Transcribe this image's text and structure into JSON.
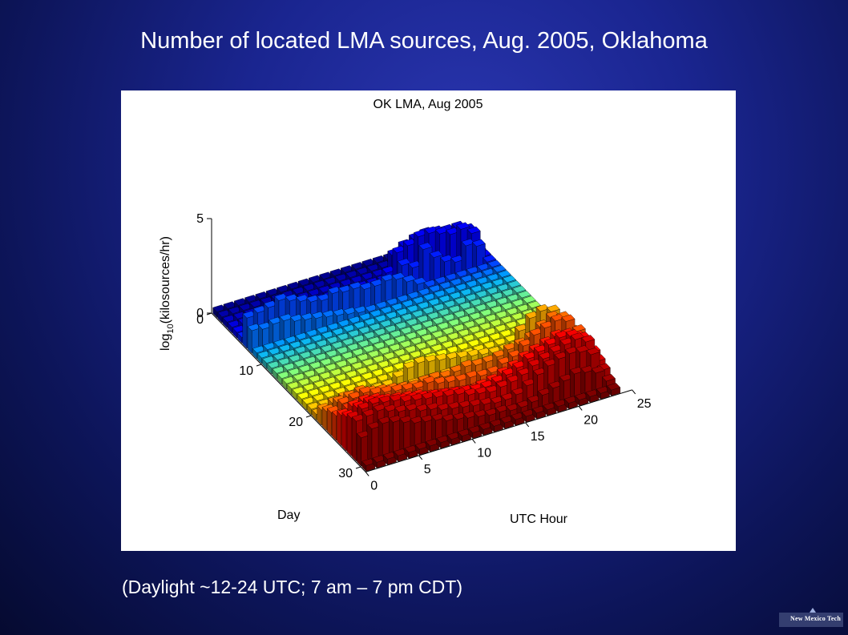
{
  "slide": {
    "title": "Number of located LMA sources, Aug. 2005, Oklahoma",
    "caption": "(Daylight ~12-24 UTC;  7 am – 7 pm CDT)",
    "logo_text": "New Mexico Tech"
  },
  "chart_data": {
    "type": "bar3d",
    "title": "OK LMA, Aug 2005",
    "xlabel": "UTC Hour",
    "ylabel": "Day",
    "zlabel": "log10(kilosources/hr)",
    "zlabel_main": "log",
    "zlabel_sub": "10",
    "zlabel_rest": "(kilosources/hr)",
    "x_ticks": [
      "0",
      "5",
      "10",
      "15",
      "20",
      "25"
    ],
    "y_ticks": [
      "0",
      "10",
      "20",
      "30"
    ],
    "z_ticks": [
      "0",
      "5"
    ],
    "x_range": [
      0,
      25
    ],
    "y_range": [
      0,
      31
    ],
    "z_range": [
      0,
      5
    ],
    "colormap": "jet, colored by day (day 1 blue to day 31 dark red)",
    "day_colors": [
      "#00008f",
      "#0000ff",
      "#00b0ff",
      "#7fff7f",
      "#ffff00",
      "#ff8000",
      "#ff0000",
      "#800000"
    ],
    "z_values_by_day": [
      [
        0.3,
        0.3,
        0.3,
        0.3,
        0.3,
        0.3,
        0.3,
        0.3,
        0.3,
        0.3,
        0.3,
        0.3,
        0.3,
        0.3,
        0.3,
        0.3,
        0.3,
        0.3,
        0.3,
        0.3,
        0.3,
        0.3,
        0.3,
        0.3
      ],
      [
        0.3,
        0.3,
        0.3,
        0.3,
        0.3,
        0.3,
        0.3,
        0.3,
        0.3,
        0.3,
        0.3,
        0.3,
        0.3,
        0.3,
        0.3,
        0.3,
        0.3,
        0.3,
        0.3,
        0.3,
        0.3,
        0.3,
        0.3,
        0.3
      ],
      [
        0.3,
        0.3,
        0.3,
        0.3,
        0.3,
        0.3,
        0.3,
        0.3,
        0.3,
        0.3,
        0.3,
        0.3,
        0.3,
        0.3,
        0.3,
        0.3,
        0.3,
        0.3,
        0.3,
        0.3,
        0.3,
        0.3,
        0.3,
        0.3
      ],
      [
        0.3,
        0.3,
        0.3,
        0.3,
        0.3,
        0.3,
        0.3,
        0.3,
        0.3,
        0.3,
        0.3,
        0.3,
        0.3,
        0.3,
        0.3,
        1.5,
        1.8,
        2.0,
        2.1,
        2.0,
        1.9,
        1.9,
        1.6,
        0.3
      ],
      [
        0.3,
        0.3,
        0.3,
        0.3,
        0.3,
        0.3,
        0.3,
        0.3,
        0.3,
        0.3,
        0.3,
        0.3,
        0.3,
        0.3,
        1.0,
        1.9,
        2.1,
        2.4,
        2.4,
        2.2,
        2.0,
        2.1,
        1.7,
        0.3
      ],
      [
        0.3,
        0.3,
        0.3,
        0.3,
        0.3,
        0.3,
        0.3,
        0.3,
        0.3,
        0.3,
        0.3,
        0.3,
        0.3,
        0.6,
        0.8,
        1.5,
        1.2,
        2.0,
        1.4,
        1.0,
        0.8,
        1.5,
        1.3,
        0.3
      ],
      [
        1.6,
        1.7,
        1.8,
        2.0,
        1.8,
        1.6,
        1.4,
        1.3,
        1.5,
        1.4,
        1.4,
        1.2,
        1.2,
        1.3,
        1.2,
        0.9,
        0.6,
        0.3,
        0.3,
        0.3,
        0.3,
        0.3,
        0.3,
        0.3
      ],
      [
        1.2,
        1.1,
        1.2,
        1.2,
        1.0,
        0.9,
        0.8,
        0.7,
        0.6,
        0.5,
        0.4,
        0.3,
        0.3,
        0.3,
        0.3,
        0.3,
        0.3,
        0.3,
        0.3,
        0.3,
        0.3,
        0.3,
        0.3,
        0.3
      ],
      [
        0.3,
        0.3,
        0.3,
        0.3,
        0.3,
        0.3,
        0.3,
        0.3,
        0.3,
        0.3,
        0.3,
        0.3,
        0.3,
        0.3,
        0.3,
        0.3,
        0.3,
        0.3,
        0.3,
        0.3,
        0.3,
        0.3,
        0.3,
        0.3
      ],
      [
        0.3,
        0.3,
        0.3,
        0.3,
        0.3,
        0.3,
        0.3,
        0.3,
        0.3,
        0.3,
        0.3,
        0.3,
        0.3,
        0.3,
        0.3,
        0.3,
        0.3,
        0.3,
        0.3,
        0.3,
        0.3,
        0.3,
        0.3,
        0.3
      ],
      [
        0.3,
        0.3,
        0.3,
        0.3,
        0.3,
        0.3,
        0.3,
        0.3,
        0.3,
        0.3,
        0.3,
        0.3,
        0.3,
        0.3,
        0.3,
        0.3,
        0.3,
        0.3,
        0.3,
        0.3,
        0.3,
        0.3,
        0.3,
        0.3
      ],
      [
        0.3,
        0.3,
        0.3,
        0.3,
        0.3,
        0.3,
        0.3,
        0.3,
        0.3,
        0.3,
        0.3,
        0.3,
        0.3,
        0.3,
        0.3,
        0.3,
        0.3,
        0.3,
        0.3,
        0.3,
        0.3,
        0.3,
        0.3,
        0.3
      ],
      [
        0.3,
        0.3,
        0.3,
        0.3,
        0.3,
        0.3,
        0.3,
        0.3,
        0.3,
        0.3,
        0.3,
        0.3,
        0.3,
        0.3,
        0.3,
        0.3,
        0.3,
        0.3,
        0.3,
        0.3,
        0.3,
        0.3,
        0.3,
        0.3
      ],
      [
        0.3,
        0.3,
        0.3,
        0.3,
        0.3,
        0.3,
        0.3,
        0.3,
        0.3,
        0.3,
        0.3,
        0.3,
        0.3,
        0.3,
        0.3,
        0.3,
        0.3,
        0.3,
        0.3,
        0.3,
        0.3,
        0.3,
        0.3,
        0.3
      ],
      [
        0.3,
        0.3,
        0.3,
        0.3,
        0.3,
        0.3,
        0.3,
        0.3,
        0.3,
        0.3,
        0.3,
        0.3,
        0.3,
        0.3,
        0.3,
        0.3,
        0.3,
        0.3,
        0.3,
        0.3,
        0.3,
        0.3,
        0.3,
        0.3
      ],
      [
        0.3,
        0.3,
        0.3,
        0.3,
        0.3,
        0.3,
        0.3,
        0.3,
        0.3,
        0.3,
        0.3,
        0.3,
        0.3,
        0.3,
        0.3,
        0.3,
        0.3,
        0.3,
        0.3,
        0.3,
        0.3,
        0.3,
        0.3,
        0.3
      ],
      [
        0.3,
        0.3,
        0.3,
        0.3,
        0.3,
        0.3,
        0.3,
        0.3,
        0.3,
        0.3,
        0.3,
        0.3,
        0.3,
        0.3,
        0.3,
        0.3,
        0.3,
        0.3,
        0.3,
        0.3,
        0.3,
        0.3,
        0.3,
        0.3
      ],
      [
        0.3,
        0.3,
        0.3,
        0.3,
        0.3,
        0.3,
        0.3,
        0.3,
        0.3,
        0.3,
        0.3,
        0.3,
        0.3,
        0.3,
        0.3,
        0.3,
        0.3,
        0.3,
        0.3,
        0.3,
        0.3,
        0.3,
        0.3,
        0.3
      ],
      [
        0.3,
        0.3,
        0.3,
        0.3,
        0.3,
        0.3,
        0.3,
        0.3,
        0.3,
        0.3,
        0.3,
        0.3,
        0.3,
        0.3,
        0.3,
        0.3,
        0.3,
        0.3,
        0.3,
        0.3,
        0.3,
        0.3,
        0.3,
        0.3
      ],
      [
        0.3,
        0.3,
        0.3,
        0.3,
        0.3,
        0.3,
        0.3,
        0.3,
        0.6,
        0.9,
        1.0,
        0.9,
        0.8,
        0.7,
        0.6,
        0.5,
        0.4,
        0.3,
        0.3,
        0.3,
        0.3,
        0.3,
        0.3,
        0.3
      ],
      [
        0.3,
        0.3,
        0.3,
        0.3,
        0.3,
        0.3,
        0.3,
        0.3,
        0.3,
        0.3,
        0.3,
        0.3,
        0.3,
        0.3,
        0.3,
        0.3,
        0.3,
        0.3,
        0.3,
        1.4,
        1.9,
        2.1,
        1.9,
        0.3
      ],
      [
        0.8,
        1.0,
        1.1,
        1.0,
        0.9,
        0.8,
        0.7,
        0.6,
        0.5,
        0.4,
        0.3,
        0.3,
        0.3,
        0.3,
        0.3,
        0.3,
        0.3,
        0.3,
        0.3,
        0.3,
        1.2,
        1.5,
        1.4,
        0.3
      ],
      [
        1.0,
        1.3,
        1.4,
        1.5,
        1.3,
        1.2,
        1.1,
        1.0,
        0.9,
        1.0,
        1.0,
        0.9,
        1.0,
        1.1,
        1.0,
        1.0,
        1.1,
        1.3,
        1.4,
        1.6,
        2.0,
        2.3,
        2.1,
        1.2
      ],
      [
        1.2,
        1.5,
        1.6,
        1.7,
        1.5,
        1.4,
        1.3,
        1.2,
        1.1,
        1.2,
        1.0,
        0.9,
        0.8,
        0.8,
        0.7,
        0.7,
        1.0,
        1.2,
        1.6,
        2.0,
        2.2,
        2.4,
        2.2,
        1.5
      ],
      [
        1.3,
        1.5,
        1.6,
        1.5,
        1.3,
        1.2,
        1.0,
        0.9,
        0.8,
        0.7,
        0.6,
        0.6,
        0.5,
        0.5,
        0.4,
        0.4,
        0.6,
        0.8,
        1.1,
        1.4,
        1.6,
        1.7,
        1.6,
        0.6
      ],
      [
        1.6,
        1.9,
        2.0,
        1.9,
        1.7,
        1.6,
        1.5,
        1.4,
        1.2,
        1.1,
        1.0,
        0.9,
        0.8,
        0.9,
        1.0,
        1.2,
        1.4,
        1.7,
        1.9,
        2.1,
        2.3,
        2.2,
        1.9,
        1.0
      ],
      [
        1.8,
        2.1,
        2.2,
        2.1,
        1.9,
        1.8,
        1.7,
        1.6,
        1.5,
        1.4,
        1.3,
        1.2,
        1.1,
        1.1,
        1.2,
        1.4,
        1.6,
        1.9,
        2.1,
        2.3,
        2.5,
        2.4,
        2.1,
        1.2
      ],
      [
        2.0,
        2.3,
        2.4,
        2.3,
        2.2,
        2.0,
        1.9,
        1.8,
        1.7,
        1.6,
        1.5,
        1.3,
        1.2,
        1.1,
        1.2,
        1.3,
        1.5,
        1.8,
        2.0,
        2.2,
        2.4,
        2.5,
        2.2,
        1.0
      ],
      [
        2.1,
        2.2,
        2.3,
        2.1,
        1.9,
        1.8,
        1.6,
        1.5,
        1.3,
        1.2,
        1.1,
        1.0,
        0.9,
        0.8,
        0.8,
        0.9,
        1.2,
        1.6,
        1.9,
        2.1,
        2.2,
        2.1,
        1.8,
        0.8
      ],
      [
        1.5,
        1.8,
        1.9,
        1.8,
        1.6,
        1.4,
        1.3,
        1.2,
        1.0,
        0.9,
        0.8,
        0.7,
        0.6,
        0.6,
        0.5,
        0.5,
        0.6,
        0.8,
        1.0,
        1.2,
        1.4,
        1.3,
        1.1,
        0.5
      ],
      [
        0.3,
        0.3,
        0.3,
        0.3,
        0.3,
        0.3,
        0.3,
        0.3,
        0.3,
        0.3,
        0.3,
        0.3,
        0.3,
        0.3,
        0.3,
        0.3,
        0.3,
        0.3,
        0.3,
        0.3,
        0.3,
        0.3,
        0.3,
        0.3
      ]
    ]
  }
}
